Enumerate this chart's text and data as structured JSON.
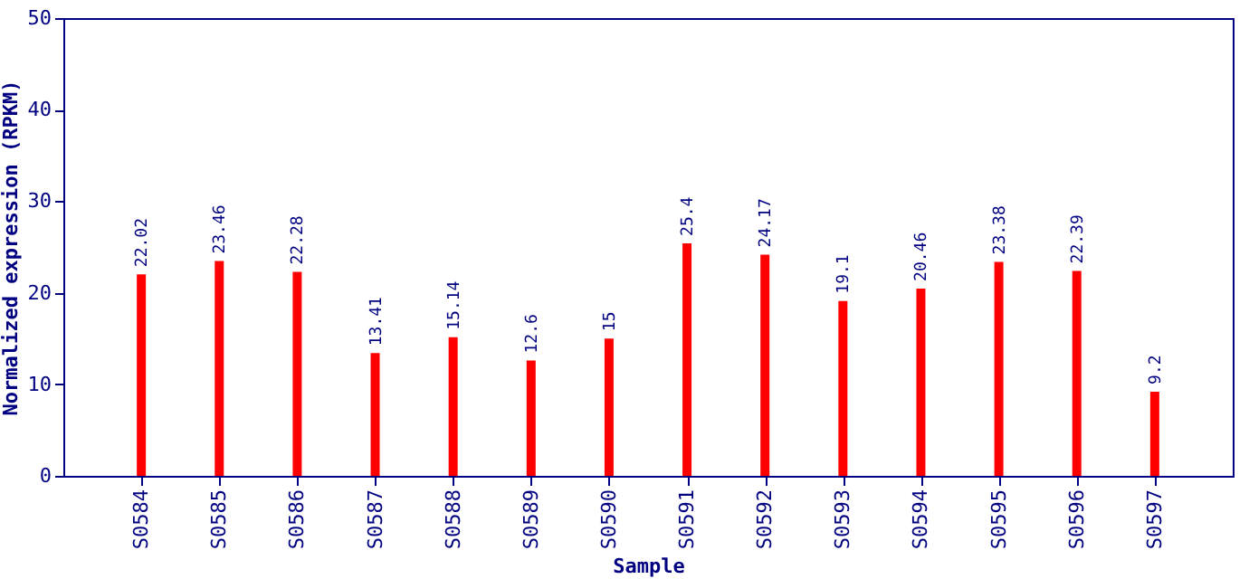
{
  "chart_data": {
    "type": "bar",
    "xlabel": "Sample",
    "ylabel": "Normalized expression (RPKM)",
    "categories": [
      "S0584",
      "S0585",
      "S0586",
      "S0587",
      "S0588",
      "S0589",
      "S0590",
      "S0591",
      "S0592",
      "S0593",
      "S0594",
      "S0595",
      "S0596",
      "S0597"
    ],
    "values": [
      22.02,
      23.46,
      22.28,
      13.41,
      15.14,
      12.6,
      15,
      25.4,
      24.17,
      19.1,
      20.46,
      23.38,
      22.39,
      9.2
    ],
    "color": "#ff0000",
    "ylim": [
      0,
      50
    ],
    "yticks": [
      0,
      10,
      20,
      30,
      40,
      50
    ],
    "grid": false,
    "data_labels": true
  }
}
